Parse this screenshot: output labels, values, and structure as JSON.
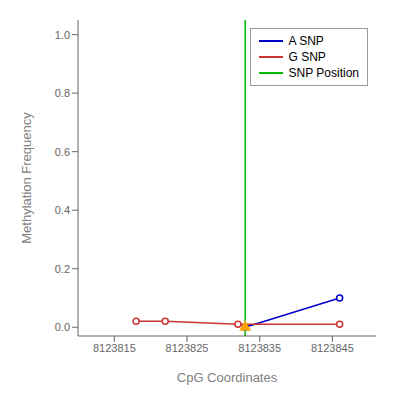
{
  "chart_data": {
    "type": "line",
    "xlabel": "CpG Coordinates",
    "ylabel": "Methylation Frequency",
    "series": [
      {
        "name": "A SNP",
        "color": "#0000cc",
        "marker": "circle",
        "x": [
          8123833,
          8123846
        ],
        "values": [
          0.0,
          0.1
        ]
      },
      {
        "name": "G SNP",
        "color": "#cc3333",
        "marker": "circle",
        "x": [
          8123818,
          8123822,
          8123832,
          8123846
        ],
        "values": [
          0.02,
          0.02,
          0.01,
          0.01
        ]
      },
      {
        "name": "SNP Position",
        "type": "vline",
        "color": "#00bb00",
        "x": [
          8123833
        ]
      },
      {
        "type": "scatter",
        "marker": "triangle",
        "color": "#FFA500",
        "x": [
          8123833
        ],
        "values": [
          0.0
        ]
      }
    ],
    "xlim": [
      8123810,
      8123851
    ],
    "xticks": [
      8123815,
      8123825,
      8123835,
      8123845
    ],
    "ylim": [
      -0.03,
      1.05
    ],
    "yticks": [
      {
        "value": 0,
        "label": "0.0"
      },
      0.2,
      0.4,
      0.6,
      0.8,
      {
        "value": 1,
        "label": "1.0"
      }
    ],
    "grid": false,
    "legend": "upper right"
  }
}
